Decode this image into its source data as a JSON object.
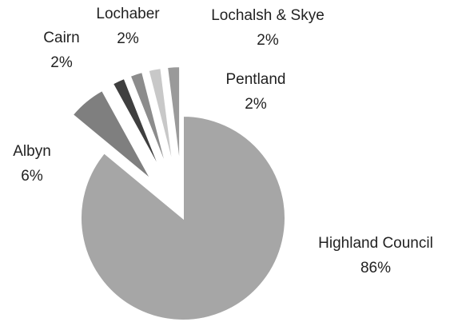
{
  "chart_data": {
    "type": "pie",
    "categories": [
      "Highland Council",
      "Albyn",
      "Cairn",
      "Lochaber",
      "Lochalsh & Skye",
      "Pentland"
    ],
    "values": [
      86,
      6,
      2,
      2,
      2,
      2
    ],
    "value_labels": [
      "86%",
      "6%",
      "2%",
      "2%",
      "2%",
      "2%"
    ],
    "colors": [
      "#a6a6a6",
      "#7f7f7f",
      "#3f3f3f",
      "#8c8c8c",
      "#c8c8c8",
      "#9a9a9a"
    ]
  }
}
